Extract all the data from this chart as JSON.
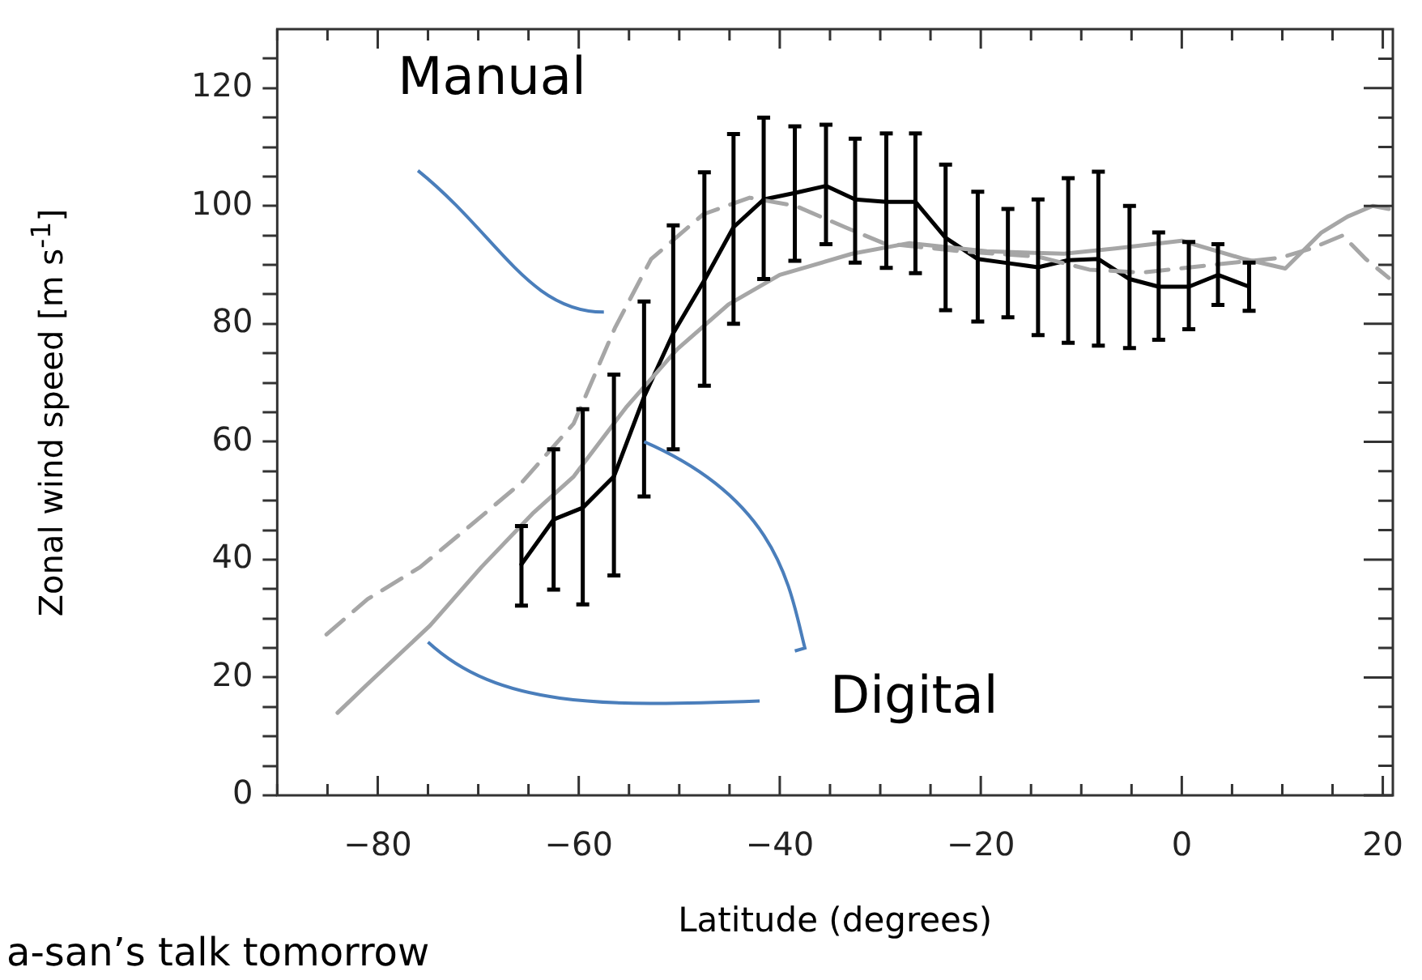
{
  "chart_data": {
    "type": "line",
    "xlabel": "Latitude (degrees)",
    "ylabel": "Zonal wind speed [m s$^{-1}$]",
    "xlim": [
      -90,
      21
    ],
    "ylim": [
      0,
      130
    ],
    "xticks": [
      {
        "value": -90,
        "label": null
      },
      {
        "value": -85,
        "label": null
      },
      -80,
      {
        "value": -75,
        "label": null
      },
      {
        "value": -70,
        "label": null
      },
      {
        "value": -65,
        "label": null
      },
      -60,
      {
        "value": -55,
        "label": null
      },
      {
        "value": -50,
        "label": null
      },
      {
        "value": -45,
        "label": null
      },
      -40,
      {
        "value": -35,
        "label": null
      },
      {
        "value": -30,
        "label": null
      },
      {
        "value": -25,
        "label": null
      },
      -20,
      {
        "value": -15,
        "label": null
      },
      {
        "value": -10,
        "label": null
      },
      {
        "value": -5,
        "label": null
      },
      0,
      {
        "value": 5,
        "label": null
      },
      {
        "value": 10,
        "label": null
      },
      {
        "value": 15,
        "label": null
      },
      20
    ],
    "yticks": [
      0,
      {
        "value": 5,
        "label": null
      },
      {
        "value": 10,
        "label": null
      },
      {
        "value": 15,
        "label": null
      },
      20,
      {
        "value": 25,
        "label": null
      },
      {
        "value": 30,
        "label": null
      },
      {
        "value": 35,
        "label": null
      },
      40,
      {
        "value": 45,
        "label": null
      },
      {
        "value": 50,
        "label": null
      },
      {
        "value": 55,
        "label": null
      },
      60,
      {
        "value": 65,
        "label": null
      },
      {
        "value": 70,
        "label": null
      },
      {
        "value": 75,
        "label": null
      },
      80,
      {
        "value": 85,
        "label": null
      },
      {
        "value": 90,
        "label": null
      },
      {
        "value": 95,
        "label": null
      },
      100,
      {
        "value": 105,
        "label": null
      },
      {
        "value": 110,
        "label": null
      },
      {
        "value": 115,
        "label": null
      },
      120,
      {
        "value": 125,
        "label": null
      }
    ],
    "grid": false,
    "legend": false,
    "marker": "none",
    "series": [
      {
        "color": "#a6a6a6",
        "line_style": "dashed",
        "x": [
          -85.1,
          -81,
          -75.8,
          -70.7,
          -65.6,
          -60.5,
          -56.4,
          -52.8,
          -47.6,
          -43,
          -38.4,
          -33.5,
          -29.7,
          -22,
          -14.3,
          -9.2,
          -4,
          3.6,
          9.8,
          12.9,
          16,
          18.3,
          20.6
        ],
        "values": [
          27.3,
          33.3,
          38.7,
          45.9,
          53.2,
          63.1,
          79.3,
          91,
          98.6,
          101.4,
          100,
          96.4,
          93.7,
          92.3,
          91.4,
          89.2,
          88.7,
          90.1,
          91.2,
          92.8,
          95,
          91,
          87.8
        ]
      },
      {
        "color": "#a6a6a6",
        "line_style": "solid",
        "x": [
          -84,
          -81,
          -74.8,
          -69.7,
          -64.6,
          -60.5,
          -55.3,
          -50.2,
          -45.1,
          -40,
          -32.8,
          -27.1,
          -19.4,
          -11.7,
          -6.6,
          0,
          6.2,
          10.3,
          13.9,
          16.5,
          19,
          20.6
        ],
        "values": [
          14,
          18.9,
          28.8,
          38.7,
          47.8,
          54.1,
          65.8,
          75.7,
          83.3,
          88.3,
          91.9,
          93.7,
          92.3,
          91.9,
          92.8,
          94.1,
          91,
          89.4,
          95.5,
          98.2,
          100,
          99.5
        ]
      },
      {
        "color": "#000000",
        "line_style": "solid",
        "x": [
          -65.7,
          -62.5,
          -59.6,
          -56.5,
          -53.5,
          -50.6,
          -47.5,
          -44.6,
          -41.6,
          -38.5,
          -35.4,
          -32.5,
          -29.4,
          -26.5,
          -23.5,
          -20.3,
          -17.3,
          -14.3,
          -11.3,
          -8.3,
          -5.2,
          -2.3,
          0.7,
          3.6,
          6.7
        ],
        "values": [
          39.2,
          46.8,
          48.8,
          54.1,
          67.6,
          78.4,
          87.4,
          96.4,
          101.1,
          102.2,
          103.4,
          101.1,
          100.7,
          100.7,
          94.6,
          91,
          90.3,
          89.6,
          90.8,
          91,
          87.6,
          86.3,
          86.3,
          88.3,
          86.3
        ],
        "errors": [
          [
            32.2,
            45.7
          ],
          [
            34.9,
            58.7
          ],
          [
            32.4,
            65.5
          ],
          [
            37.3,
            71.4
          ],
          [
            50.7,
            83.8
          ],
          [
            58.7,
            96.7
          ],
          [
            69.5,
            105.7
          ],
          [
            80,
            112.2
          ],
          [
            87.6,
            115
          ],
          [
            90.7,
            113.5
          ],
          [
            93.5,
            113.8
          ],
          [
            90.4,
            111.4
          ],
          [
            89.5,
            112.3
          ],
          [
            88.6,
            112.3
          ],
          [
            82.3,
            107
          ],
          [
            80.4,
            102.4
          ],
          [
            81.1,
            99.5
          ],
          [
            78.1,
            101.1
          ],
          [
            76.8,
            104.7
          ],
          [
            76.3,
            105.8
          ],
          [
            75.9,
            100
          ],
          [
            77.3,
            95.5
          ],
          [
            79.1,
            93.9
          ],
          [
            83.2,
            93.5
          ],
          [
            82.2,
            90.4
          ]
        ]
      }
    ],
    "annotations": [
      "Manual",
      {
        "text": "Digital",
        "x": -53.5,
        "y": 60
      },
      "a-san’s talk tomorrow"
    ]
  }
}
